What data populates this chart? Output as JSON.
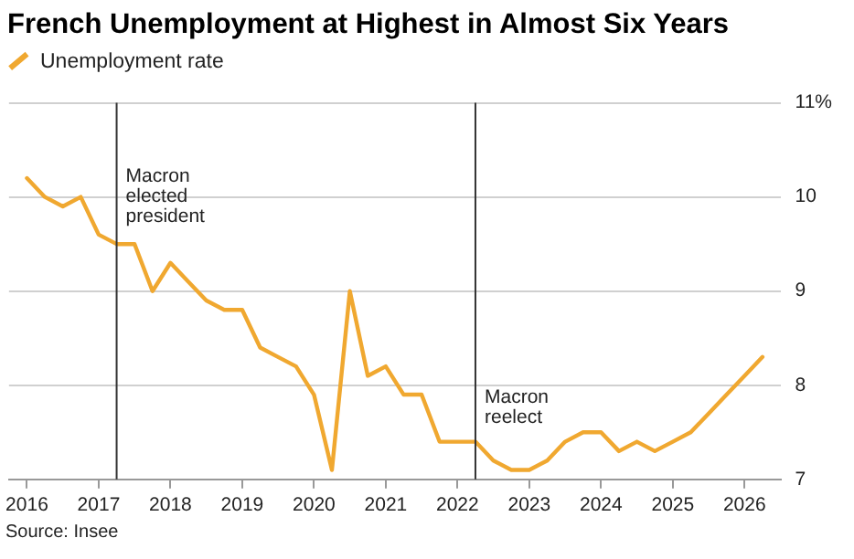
{
  "chart_data": {
    "type": "line",
    "title": "French Unemployment at Highest in Almost Six Years",
    "x": [
      2016,
      2016.25,
      2016.5,
      2016.75,
      2017,
      2017.25,
      2017.5,
      2017.75,
      2018,
      2018.25,
      2018.5,
      2018.75,
      2019,
      2019.25,
      2019.5,
      2019.75,
      2020,
      2020.25,
      2020.5,
      2020.75,
      2021,
      2021.25,
      2021.5,
      2021.75,
      2022,
      2022.25,
      2022.5,
      2022.75,
      2023,
      2023.25,
      2023.5,
      2023.75,
      2024,
      2024.25,
      2024.5,
      2024.75,
      2025,
      2025.25,
      2025.5,
      2025.75,
      2026,
      2026.25
    ],
    "series": [
      {
        "name": "Unemployment rate",
        "color": "#f0a830",
        "values": [
          10.2,
          10.0,
          9.9,
          10.0,
          9.6,
          9.5,
          9.5,
          9.0,
          9.3,
          9.1,
          8.9,
          8.8,
          8.8,
          8.4,
          8.3,
          8.2,
          7.9,
          7.1,
          9.0,
          8.1,
          8.2,
          7.9,
          7.9,
          7.4,
          7.4,
          7.4,
          7.2,
          7.1,
          7.1,
          7.2,
          7.4,
          7.5,
          7.5,
          7.3,
          7.4,
          7.3,
          7.4,
          7.5,
          7.7,
          7.9,
          8.1,
          8.3
        ]
      }
    ],
    "xlim": [
      2015.75,
      2026.5
    ],
    "xticks": [
      2016,
      2017,
      2018,
      2019,
      2020,
      2021,
      2022,
      2023,
      2024,
      2025,
      2026
    ],
    "ylim": [
      7,
      11
    ],
    "yticks": [
      7,
      8,
      9,
      10,
      {
        "value": 11,
        "label": "11%"
      }
    ],
    "grid": "y",
    "legend": "top left",
    "marker": "none",
    "line_style": "solid",
    "ref_lines": [
      {
        "axis": "x",
        "value": 2017.25,
        "label": "Macron elected president",
        "color": "#333333"
      },
      {
        "axis": "x",
        "value": 2022.25,
        "label": "Macron reelect",
        "color": "#333333"
      }
    ],
    "annotations": [
      "Source: Insee"
    ]
  }
}
